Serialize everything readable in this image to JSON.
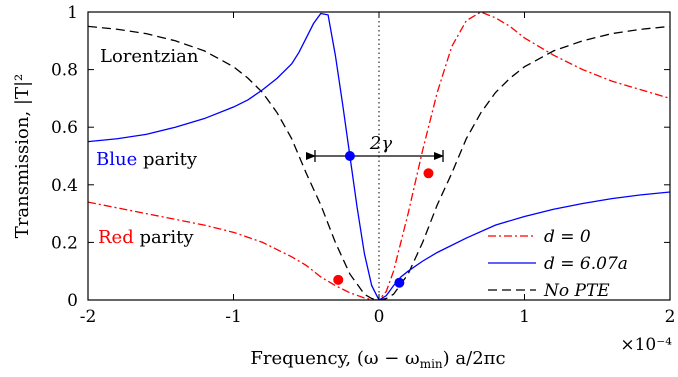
{
  "chart_data": {
    "type": "line",
    "title": "",
    "xlabel": "Frequency, (ω − ω",
    "xlabel_sub": "min",
    "xlabel_tail": ") a/2πc",
    "ylabel": "Transmission, |T|²",
    "x_multiplier": "×10⁻⁴",
    "xlim": [
      -2,
      2
    ],
    "ylim": [
      0,
      1
    ],
    "x_ticks": [
      -2,
      -1,
      0,
      1,
      2
    ],
    "x_tick_labels": [
      "-2",
      "-1",
      "0",
      "1",
      "2"
    ],
    "y_ticks": [
      0,
      0.2,
      0.4,
      0.6,
      0.8,
      1
    ],
    "y_tick_labels": [
      "0",
      "0.2",
      "0.4",
      "0.6",
      "0.8",
      "1"
    ],
    "grid": false,
    "legend_position": "bottom-right",
    "vertical_reference_x": 0,
    "series": [
      {
        "name": "d = 0",
        "color": "#ff0000",
        "dash": "dashdot",
        "x": [
          -2.0,
          -1.8,
          -1.6,
          -1.4,
          -1.2,
          -1.0,
          -0.8,
          -0.6,
          -0.5,
          -0.4,
          -0.3,
          -0.2,
          -0.1,
          -0.05,
          0.0,
          0.05,
          0.1,
          0.2,
          0.3,
          0.4,
          0.5,
          0.6,
          0.7,
          0.8,
          0.9,
          1.0,
          1.2,
          1.4,
          1.6,
          1.8,
          2.0
        ],
        "y": [
          0.34,
          0.32,
          0.3,
          0.28,
          0.26,
          0.235,
          0.2,
          0.15,
          0.12,
          0.08,
          0.05,
          0.025,
          0.007,
          0.001,
          0.0,
          0.03,
          0.1,
          0.3,
          0.52,
          0.72,
          0.88,
          0.97,
          1.0,
          0.98,
          0.95,
          0.91,
          0.85,
          0.8,
          0.76,
          0.73,
          0.7
        ]
      },
      {
        "name": "d = 6.07a",
        "color": "#0000ff",
        "dash": "solid",
        "x": [
          -2.0,
          -1.8,
          -1.6,
          -1.4,
          -1.2,
          -1.0,
          -0.9,
          -0.8,
          -0.7,
          -0.6,
          -0.55,
          -0.5,
          -0.45,
          -0.4,
          -0.35,
          -0.3,
          -0.25,
          -0.2,
          -0.15,
          -0.1,
          -0.05,
          0.0,
          0.05,
          0.1,
          0.15,
          0.2,
          0.3,
          0.4,
          0.6,
          0.8,
          1.0,
          1.2,
          1.4,
          1.6,
          1.8,
          2.0
        ],
        "y": [
          0.55,
          0.56,
          0.575,
          0.6,
          0.63,
          0.67,
          0.695,
          0.73,
          0.77,
          0.82,
          0.86,
          0.91,
          0.96,
          0.995,
          0.99,
          0.85,
          0.68,
          0.5,
          0.32,
          0.16,
          0.05,
          0.0,
          0.015,
          0.05,
          0.08,
          0.1,
          0.135,
          0.165,
          0.215,
          0.26,
          0.29,
          0.315,
          0.335,
          0.352,
          0.365,
          0.375
        ]
      },
      {
        "name": "No PTE",
        "color": "#000000",
        "dash": "dashed",
        "x": [
          -2.0,
          -1.8,
          -1.6,
          -1.4,
          -1.2,
          -1.0,
          -0.9,
          -0.8,
          -0.7,
          -0.6,
          -0.5,
          -0.4,
          -0.3,
          -0.2,
          -0.1,
          -0.05,
          0.0,
          0.05,
          0.1,
          0.2,
          0.3,
          0.4,
          0.5,
          0.6,
          0.7,
          0.8,
          0.9,
          1.0,
          1.2,
          1.4,
          1.6,
          1.8,
          2.0
        ],
        "y": [
          0.95,
          0.94,
          0.925,
          0.9,
          0.865,
          0.81,
          0.77,
          0.72,
          0.65,
          0.56,
          0.44,
          0.33,
          0.2,
          0.09,
          0.02,
          0.005,
          0.0,
          0.005,
          0.02,
          0.09,
          0.2,
          0.33,
          0.44,
          0.56,
          0.65,
          0.72,
          0.77,
          0.81,
          0.865,
          0.9,
          0.925,
          0.94,
          0.95
        ]
      }
    ],
    "markers": [
      {
        "x": -0.28,
        "y": 0.07,
        "color": "#ff0000"
      },
      {
        "x": 0.34,
        "y": 0.44,
        "color": "#ff0000"
      },
      {
        "x": -0.2,
        "y": 0.5,
        "color": "#0000ff"
      },
      {
        "x": 0.14,
        "y": 0.06,
        "color": "#0000ff"
      }
    ],
    "width_arrow": {
      "x_start": -0.44,
      "x_end": 0.44,
      "y": 0.5,
      "label": "2γ"
    },
    "annotations": {
      "lorentzian": "Lorentzian",
      "blue_word": "Blue",
      "red_word": "Red",
      "parity_word": "parity",
      "blue_color": "#0000ff",
      "red_color": "#ff0000"
    },
    "legend": [
      {
        "label": "d = 0",
        "color": "#ff0000",
        "dash": "dashdot"
      },
      {
        "label": "d = 6.07a",
        "color": "#0000ff",
        "dash": "solid"
      },
      {
        "label": "No PTE",
        "color": "#000000",
        "dash": "dashed"
      }
    ]
  }
}
